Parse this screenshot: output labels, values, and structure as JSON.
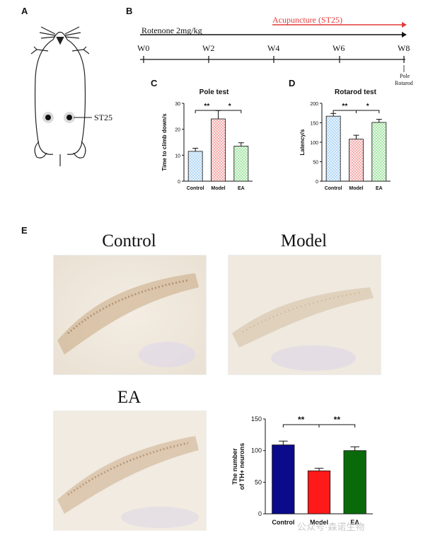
{
  "panels": {
    "A": "A",
    "B": "B",
    "C": "C",
    "D": "D",
    "E": "E"
  },
  "panel_a": {
    "acupoint_label": "ST25"
  },
  "panel_b": {
    "treatment_label": "Rotenone 2mg/kg",
    "intervention_label": "Acupuncture (ST25)",
    "weeks": [
      "W0",
      "W2",
      "W4",
      "W6",
      "W8"
    ],
    "endpoint_tests": [
      "Pole",
      "Rotarod"
    ],
    "colors": {
      "intervention": "#e23b3b",
      "treatment": "#111111"
    }
  },
  "chart_data": [
    {
      "type": "bar",
      "title": "Pole test",
      "ylabel": "Time to climb down/s",
      "categories": [
        "Control",
        "Model",
        "EA"
      ],
      "values": [
        11.5,
        24,
        13.5
      ],
      "errors": [
        1.2,
        3.2,
        1.3
      ],
      "ylim": [
        0,
        30
      ],
      "yticks": [
        "0",
        "10",
        "20",
        "30"
      ],
      "significance": [
        {
          "from": "Control",
          "to": "Model",
          "label": "**"
        },
        {
          "from": "Model",
          "to": "EA",
          "label": "*"
        }
      ],
      "colors": [
        "#a9d3f5",
        "#f4a3a3",
        "#9fe39f"
      ]
    },
    {
      "type": "bar",
      "title": "Rotarod test",
      "ylabel": "Latency/s",
      "categories": [
        "Control",
        "Model",
        "EA"
      ],
      "values": [
        167,
        108,
        151
      ],
      "errors": [
        7,
        10,
        8
      ],
      "ylim": [
        0,
        200
      ],
      "yticks": [
        "0",
        "50",
        "100",
        "150",
        "200"
      ],
      "significance": [
        {
          "from": "Control",
          "to": "Model",
          "label": "**"
        },
        {
          "from": "Model",
          "to": "EA",
          "label": "*"
        }
      ],
      "colors": [
        "#a9d3f5",
        "#f4a3a3",
        "#9fe39f"
      ]
    },
    {
      "type": "bar",
      "title": "",
      "ylabel": "The number of TH+ neurons",
      "categories": [
        "Control",
        "Model",
        "EA"
      ],
      "values": [
        109,
        68,
        100
      ],
      "errors": [
        6,
        4,
        6
      ],
      "ylim": [
        0,
        150
      ],
      "yticks": [
        "0",
        "50",
        "100",
        "150"
      ],
      "significance": [
        {
          "from": "Control",
          "to": "Model",
          "label": "**"
        },
        {
          "from": "Model",
          "to": "EA",
          "label": "**"
        }
      ],
      "colors": [
        "#0a0a8a",
        "#ff1a1a",
        "#0a6a0a"
      ]
    }
  ],
  "panel_e": {
    "labels": [
      "Control",
      "Model",
      "EA"
    ]
  },
  "watermark": "公众号·森诺生物"
}
